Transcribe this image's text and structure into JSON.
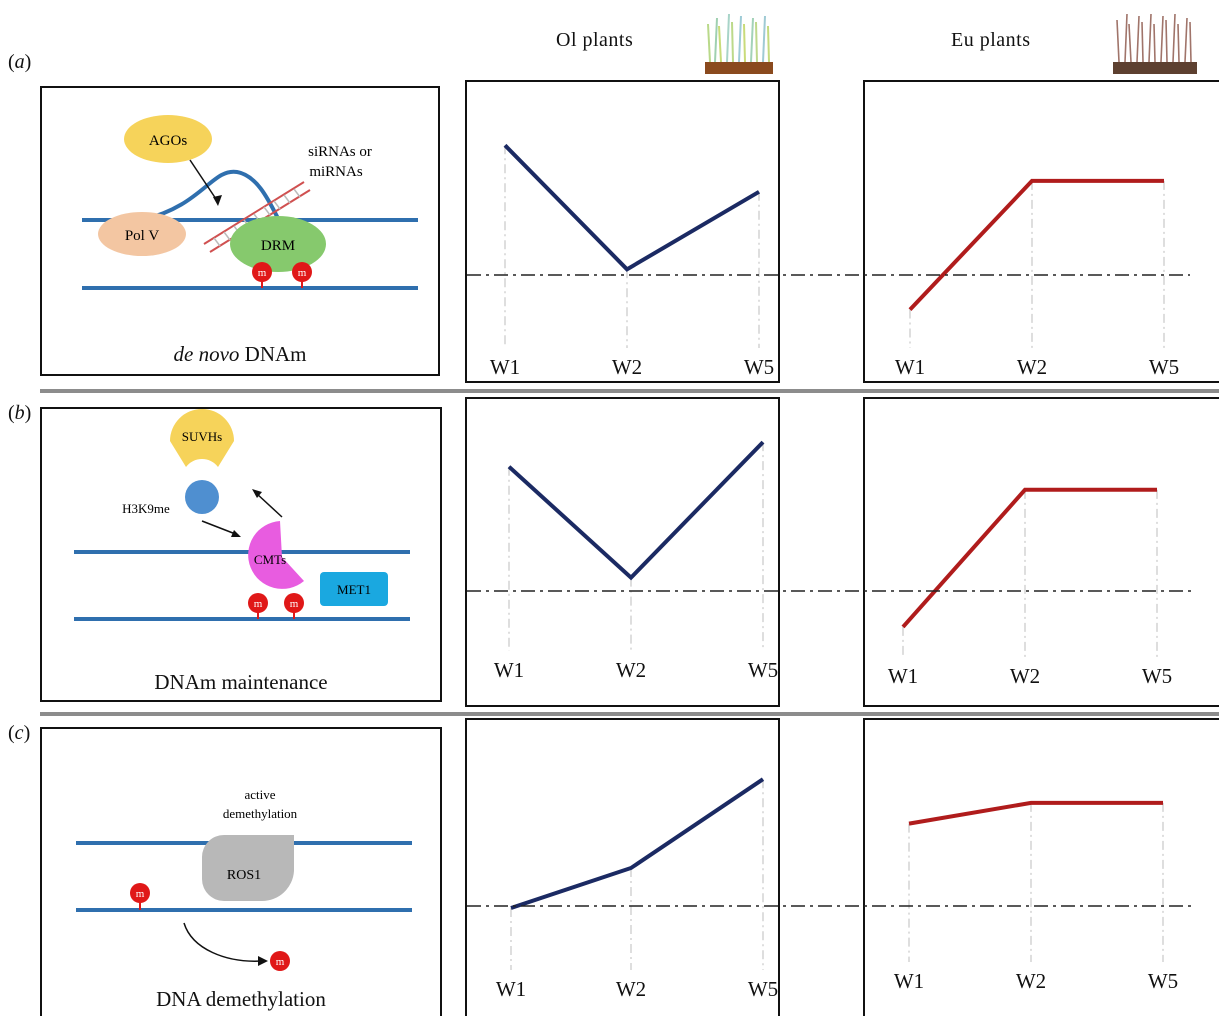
{
  "header": {
    "ol_plants": "Ol  plants",
    "eu_plants": "Eu  plants"
  },
  "rows": [
    {
      "label_prefix": "(",
      "label_letter": "a",
      "label_suffix": ")",
      "caption_italic": "de novo",
      "caption_rest": " DNAm",
      "diagram": {
        "agos": "AGOs",
        "pol_v": "Pol V",
        "drm": "DRM",
        "small_rna_line1": "siRNAs or",
        "small_rna_line2": "miRNAs",
        "methyl_mark": "m"
      }
    },
    {
      "label_prefix": "(",
      "label_letter": "b",
      "label_suffix": ")",
      "caption": "DNAm maintenance",
      "diagram": {
        "suvhs": "SUVHs",
        "h3k9me": "H3K9me",
        "cmts": "CMTs",
        "met1": "MET1",
        "methyl_mark": "m"
      }
    },
    {
      "label_prefix": "(",
      "label_letter": "c",
      "label_suffix": ")",
      "caption": "DNA demethylation",
      "diagram": {
        "active_line1": "active",
        "active_line2": "demethylation",
        "ros1": "ROS1",
        "methyl_mark": "m"
      }
    }
  ],
  "x_labels": [
    "W1",
    "W2",
    "W5"
  ],
  "colors": {
    "ol_line": "#1b2a63",
    "eu_line": "#b01c1c",
    "dna_strand": "#2f6fae",
    "agos": "#f6d35a",
    "pol_v": "#f3c6a2",
    "drm": "#86c96d",
    "suvhs": "#f6d35a",
    "h3k9me": "#4f8fd0",
    "cmts": "#e85ce0",
    "met1": "#1aa8e0",
    "ros1": "#b8b8b8",
    "methyl": "#e01818"
  },
  "chart_data": [
    {
      "type": "line",
      "panel": "a-Ol",
      "x": [
        "W1",
        "W2",
        "W5"
      ],
      "values": [
        0.85,
        0.05,
        0.55
      ],
      "ylim": [
        -0.3,
        1.0
      ],
      "baseline": 0
    },
    {
      "type": "line",
      "panel": "a-Eu",
      "x": [
        "W1",
        "W2",
        "W5"
      ],
      "values": [
        -0.21,
        0.62,
        0.62
      ],
      "ylim": [
        -0.3,
        1.0
      ],
      "baseline": 0
    },
    {
      "type": "line",
      "panel": "b-Ol",
      "x": [
        "W1",
        "W2",
        "W5"
      ],
      "values": [
        0.82,
        0.1,
        0.98
      ],
      "ylim": [
        -0.3,
        1.0
      ],
      "baseline": 0
    },
    {
      "type": "line",
      "panel": "b-Eu",
      "x": [
        "W1",
        "W2",
        "W5"
      ],
      "values": [
        -0.22,
        0.67,
        0.67
      ],
      "ylim": [
        -0.3,
        1.0
      ],
      "baseline": 0
    },
    {
      "type": "line",
      "panel": "c-Ol",
      "x": [
        "W1",
        "W2",
        "W5"
      ],
      "values": [
        0.0,
        0.27,
        0.87
      ],
      "ylim": [
        -0.3,
        1.0
      ],
      "baseline": 0
    },
    {
      "type": "line",
      "panel": "c-Eu",
      "x": [
        "W1",
        "W2",
        "W5"
      ],
      "values": [
        0.57,
        0.71,
        0.71
      ],
      "ylim": [
        -0.3,
        1.0
      ],
      "baseline": 0
    }
  ]
}
